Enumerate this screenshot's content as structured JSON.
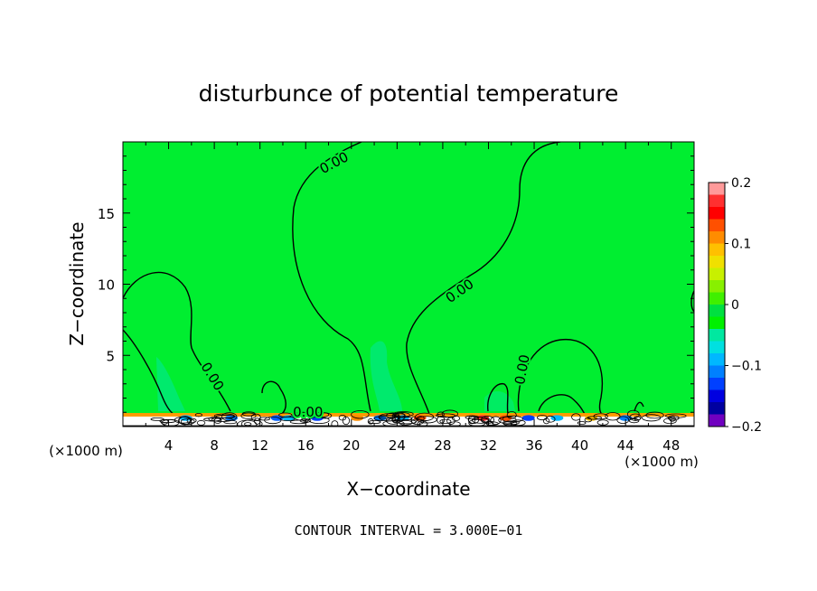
{
  "chart_data": {
    "type": "heatmap",
    "title": "disturbunce of potential temperature",
    "xlabel": "X−coordinate",
    "ylabel": "Z−coordinate",
    "x_unit_left": "(×1000 m)",
    "x_unit_right": "(×1000 m)",
    "xlim": [
      0,
      50
    ],
    "ylim": [
      0,
      20
    ],
    "xticks": [
      4,
      8,
      12,
      16,
      20,
      24,
      28,
      32,
      36,
      40,
      44,
      48
    ],
    "yticks": [
      5,
      10,
      15
    ],
    "footer": "CONTOUR INTERVAL = 3.000E−01",
    "contour_labels": [
      {
        "text": "0.00",
        "x": 18.5,
        "z": 18.5,
        "angle": -28
      },
      {
        "text": "0.00",
        "x": 29.5,
        "z": 9.5,
        "angle": -35
      },
      {
        "text": "0.00",
        "x": 7.8,
        "z": 3.5,
        "angle": 58
      },
      {
        "text": "0.00",
        "x": 16.2,
        "z": 1.0,
        "angle": 0
      },
      {
        "text": "0.00",
        "x": 35.0,
        "z": 4.0,
        "angle": -80
      }
    ],
    "colorbar": {
      "min": -0.2,
      "max": 0.2,
      "tick_labels": [
        "0.2",
        "0.1",
        "0",
        "−0.1",
        "−0.2"
      ],
      "tick_values": [
        0.2,
        0.1,
        0,
        -0.1,
        -0.2
      ],
      "colors": [
        "#ff9a9a",
        "#ff3030",
        "#ff0000",
        "#ff5000",
        "#ff8c00",
        "#ffc000",
        "#f0e000",
        "#c8f000",
        "#88f000",
        "#40f000",
        "#00e040",
        "#00f000",
        "#00e8a0",
        "#00e0e0",
        "#00b8ff",
        "#0080ff",
        "#0040ff",
        "#0000e0",
        "#0000a0",
        "#7000c0"
      ]
    },
    "background_value": 0,
    "background_color": "#00ee30"
  }
}
